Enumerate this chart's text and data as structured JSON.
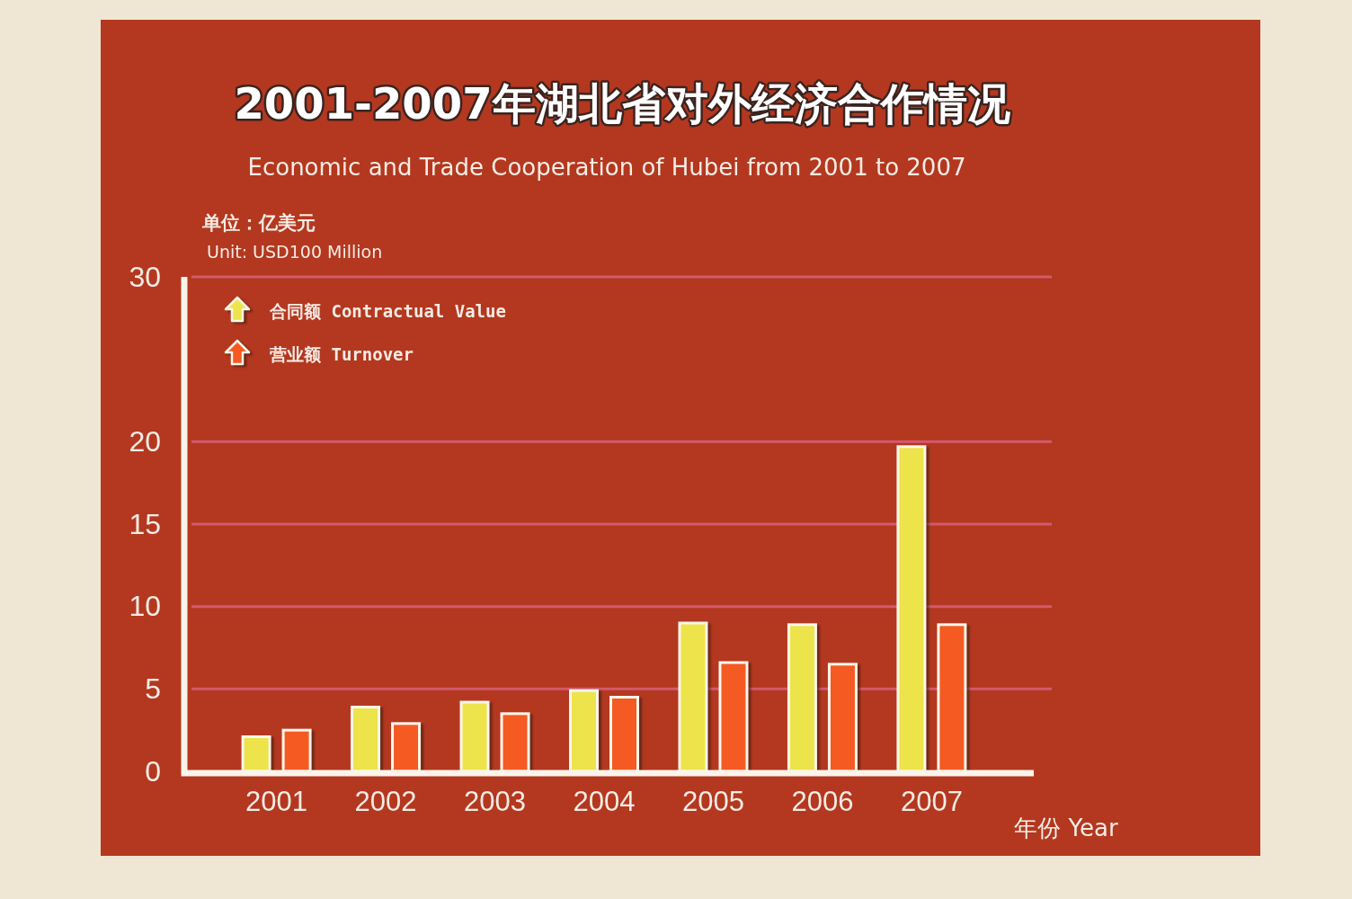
{
  "chart_data": {
    "type": "bar",
    "title": "2001-2007年湖北省对外经济合作情况",
    "subtitle": "Economic and Trade Cooperation of Hubei from 2001 to 2007",
    "ylabel": "单位：亿美元\nUnit: USD100 Million",
    "xlabel": "年份 Year",
    "categories": [
      "2001",
      "2002",
      "2003",
      "2004",
      "2005",
      "2006",
      "2007"
    ],
    "series": [
      {
        "name": "合同额 Contractual Value",
        "color": "#ece44a",
        "values": [
          2.1,
          3.9,
          4.2,
          4.9,
          9.0,
          8.9,
          19.7
        ]
      },
      {
        "name": "营业额 Turnover",
        "color": "#f45a22",
        "values": [
          2.5,
          2.9,
          3.5,
          4.5,
          6.6,
          6.5,
          8.9
        ]
      }
    ],
    "ylim": [
      0,
      30
    ],
    "yticks": [
      0,
      5,
      10,
      15,
      20,
      30
    ],
    "grid": "y",
    "legend": "top left"
  }
}
